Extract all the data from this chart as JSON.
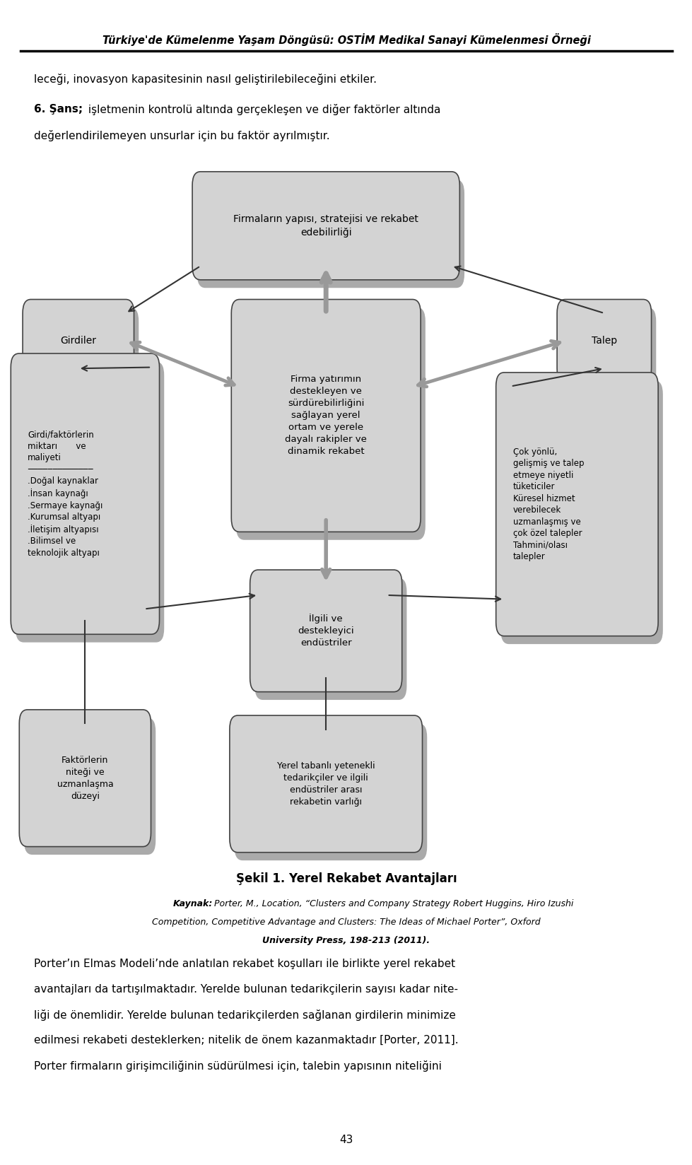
{
  "title_header": "Türkiye'de Kümelenme Yaşam Döngüsü: OSTİM Medikal Sanayi Kümelenmesi Örneği",
  "top_text1": "leceği, inovasyon kapasitesinin nasıl geliştirilebileceğini etkiler.",
  "top_text2_bold": "6. Şans;",
  "top_text2_rest": " işletmenin kontrolü altında gerçekleşen ve diğer faktörler altında",
  "top_text2_line2": "değerlendirilemeyen unsurlar için bu faktör ayrılmıştır.",
  "fig_caption": "Şekil 1. Yerel Rekabet Avantajları",
  "source_line1": "Porter, M., Location, “Clusters and Company Strategy Robert Huggins, Hiro Izushi",
  "source_line2": "Competition, Competitive Advantage and Clusters: The Ideas of Michael Porter”, Oxford",
  "source_line3": "University Press, 198-213 (2011).",
  "bottom_line1": "Porter’ın Elmas Modeli’nde anlatılan rekabet koşulları ile birlikte yerel rekabet",
  "bottom_line2": "avantajları da tartışılmaktadır. Yerelde bulunan tedarikçilerin sayısı kadar nite-",
  "bottom_line3": "liği de önemlidir. Yerelde bulunan tedarikçilerden sağlanan girdilerin minimize",
  "bottom_line4": "edilmesi rekabeti desteklerken; nitelik de önem kazanmaktadır [Porter, 2011].",
  "bottom_line5": "Porter firmaların girişimciliğinin südürülmesi için, talebin yapısının niteliğini",
  "page_number": "43",
  "box_fill": "#d3d3d3",
  "box_shadow": "#aaaaaa",
  "box_edge": "#444444"
}
